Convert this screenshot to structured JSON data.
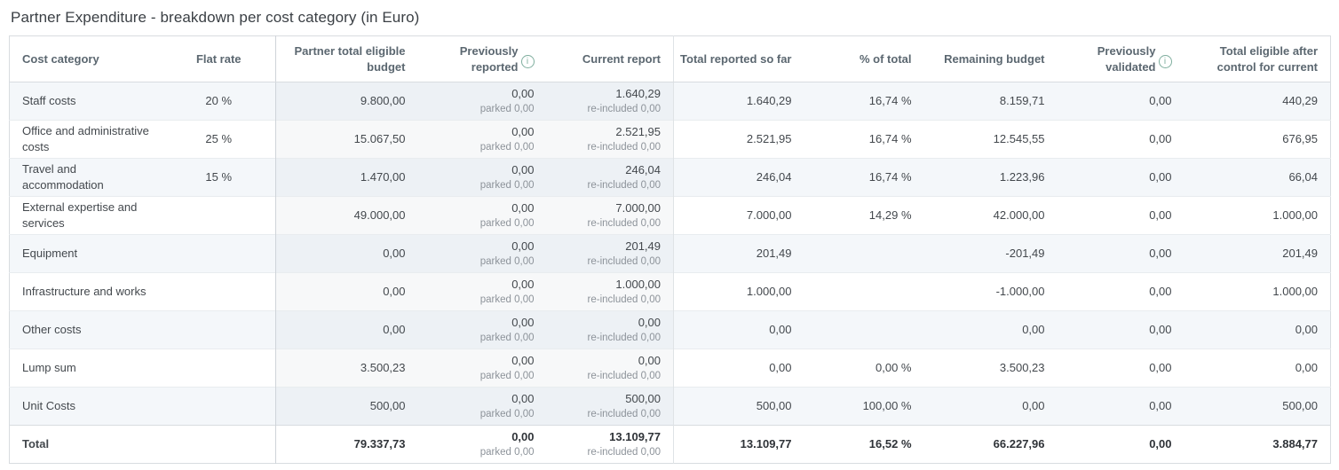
{
  "title": "Partner Expenditure - breakdown per cost category (in Euro)",
  "colors": {
    "info_icon": "#7fae9e",
    "stripe_row": "#f4f7fa",
    "band_on_stripe": "#edf1f5",
    "band_on_white": "#f7f8f9",
    "header_text": "#5b6770",
    "body_text": "#43484d",
    "sub_text": "#8d939a",
    "border": "#d8dce0"
  },
  "table": {
    "columns": [
      {
        "key": "category",
        "label": "Cost category",
        "align": "left"
      },
      {
        "key": "flat_rate",
        "label": "Flat rate",
        "align": "center"
      },
      {
        "key": "budget",
        "label": "Partner total eligible budget",
        "align": "right",
        "band": true
      },
      {
        "key": "previously_reported",
        "label": "Previously reported",
        "align": "right",
        "band": true,
        "info": true,
        "sub_key": "parked"
      },
      {
        "key": "current_report",
        "label": "Current report",
        "align": "right",
        "band": true,
        "sub_key": "re_included"
      },
      {
        "key": "total_reported",
        "label": "Total reported so far",
        "align": "right"
      },
      {
        "key": "pct_of_total",
        "label": "% of total",
        "align": "right"
      },
      {
        "key": "remaining_budget",
        "label": "Remaining budget",
        "align": "right"
      },
      {
        "key": "previously_validated",
        "label": "Previously validated",
        "align": "right",
        "info": true
      },
      {
        "key": "total_eligible",
        "label": "Total eligible after control for current",
        "align": "right"
      }
    ],
    "rows": [
      {
        "category": "Staff costs",
        "flat_rate": "20 %",
        "budget": "9.800,00",
        "previously_reported": "0,00",
        "parked": "parked 0,00",
        "current_report": "1.640,29",
        "re_included": "re-included 0,00",
        "total_reported": "1.640,29",
        "pct_of_total": "16,74 %",
        "remaining_budget": "8.159,71",
        "previously_validated": "0,00",
        "total_eligible": "440,29"
      },
      {
        "category": "Office and administrative costs",
        "flat_rate": "25 %",
        "budget": "15.067,50",
        "previously_reported": "0,00",
        "parked": "parked 0,00",
        "current_report": "2.521,95",
        "re_included": "re-included 0,00",
        "total_reported": "2.521,95",
        "pct_of_total": "16,74 %",
        "remaining_budget": "12.545,55",
        "previously_validated": "0,00",
        "total_eligible": "676,95"
      },
      {
        "category": "Travel and accommodation",
        "flat_rate": "15 %",
        "budget": "1.470,00",
        "previously_reported": "0,00",
        "parked": "parked 0,00",
        "current_report": "246,04",
        "re_included": "re-included 0,00",
        "total_reported": "246,04",
        "pct_of_total": "16,74 %",
        "remaining_budget": "1.223,96",
        "previously_validated": "0,00",
        "total_eligible": "66,04"
      },
      {
        "category": "External expertise and services",
        "flat_rate": "",
        "budget": "49.000,00",
        "previously_reported": "0,00",
        "parked": "parked 0,00",
        "current_report": "7.000,00",
        "re_included": "re-included 0,00",
        "total_reported": "7.000,00",
        "pct_of_total": "14,29 %",
        "remaining_budget": "42.000,00",
        "previously_validated": "0,00",
        "total_eligible": "1.000,00"
      },
      {
        "category": "Equipment",
        "flat_rate": "",
        "budget": "0,00",
        "previously_reported": "0,00",
        "parked": "parked 0,00",
        "current_report": "201,49",
        "re_included": "re-included 0,00",
        "total_reported": "201,49",
        "pct_of_total": "",
        "remaining_budget": "-201,49",
        "previously_validated": "0,00",
        "total_eligible": "201,49"
      },
      {
        "category": "Infrastructure and works",
        "flat_rate": "",
        "budget": "0,00",
        "previously_reported": "0,00",
        "parked": "parked 0,00",
        "current_report": "1.000,00",
        "re_included": "re-included 0,00",
        "total_reported": "1.000,00",
        "pct_of_total": "",
        "remaining_budget": "-1.000,00",
        "previously_validated": "0,00",
        "total_eligible": "1.000,00"
      },
      {
        "category": "Other costs",
        "flat_rate": "",
        "budget": "0,00",
        "previously_reported": "0,00",
        "parked": "parked 0,00",
        "current_report": "0,00",
        "re_included": "re-included 0,00",
        "total_reported": "0,00",
        "pct_of_total": "",
        "remaining_budget": "0,00",
        "previously_validated": "0,00",
        "total_eligible": "0,00"
      },
      {
        "category": "Lump sum",
        "flat_rate": "",
        "budget": "3.500,23",
        "previously_reported": "0,00",
        "parked": "parked 0,00",
        "current_report": "0,00",
        "re_included": "re-included 0,00",
        "total_reported": "0,00",
        "pct_of_total": "0,00 %",
        "remaining_budget": "3.500,23",
        "previously_validated": "0,00",
        "total_eligible": "0,00"
      },
      {
        "category": "Unit Costs",
        "flat_rate": "",
        "budget": "500,00",
        "previously_reported": "0,00",
        "parked": "parked 0,00",
        "current_report": "500,00",
        "re_included": "re-included 0,00",
        "total_reported": "500,00",
        "pct_of_total": "100,00 %",
        "remaining_budget": "0,00",
        "previously_validated": "0,00",
        "total_eligible": "500,00"
      }
    ],
    "total_row": {
      "category": "Total",
      "flat_rate": "",
      "budget": "79.337,73",
      "previously_reported": "0,00",
      "parked": "parked 0,00",
      "current_report": "13.109,77",
      "re_included": "re-included 0,00",
      "total_reported": "13.109,77",
      "pct_of_total": "16,52 %",
      "remaining_budget": "66.227,96",
      "previously_validated": "0,00",
      "total_eligible": "3.884,77"
    }
  }
}
